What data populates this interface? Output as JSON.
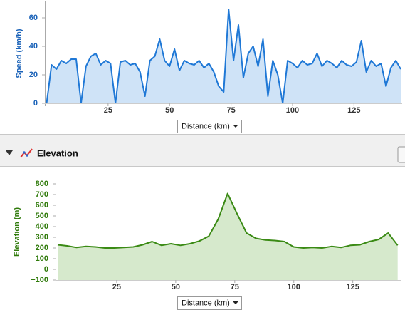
{
  "chart_data": [
    {
      "type": "area",
      "ylabel": "Speed (km/h)",
      "xlabel": "Distance (km)",
      "color": "#1f78d6",
      "fill": "#cfe3f7",
      "tick_color": "#1a62b8",
      "xlim": [
        0,
        144
      ],
      "xticks": [
        25,
        50,
        75,
        100,
        125
      ],
      "ylim": [
        0,
        70
      ],
      "yticks": [
        0,
        20,
        40,
        60
      ],
      "x": [
        0,
        2,
        4,
        6,
        8,
        10,
        12,
        14,
        16,
        18,
        20,
        22,
        24,
        26,
        28,
        30,
        32,
        34,
        36,
        38,
        40,
        42,
        44,
        46,
        48,
        50,
        52,
        54,
        56,
        58,
        60,
        62,
        64,
        66,
        68,
        70,
        72,
        74,
        76,
        78,
        80,
        82,
        84,
        86,
        88,
        90,
        92,
        94,
        96,
        98,
        100,
        102,
        104,
        106,
        108,
        110,
        112,
        114,
        116,
        118,
        120,
        122,
        124,
        126,
        128,
        130,
        132,
        134,
        136,
        138,
        140,
        142,
        144
      ],
      "values": [
        0,
        27,
        24,
        30,
        28,
        31,
        31,
        0,
        26,
        33,
        35,
        27,
        30,
        28,
        0,
        29,
        30,
        27,
        28,
        22,
        5,
        30,
        33,
        45,
        30,
        26,
        38,
        23,
        30,
        28,
        27,
        30,
        25,
        28,
        22,
        12,
        8,
        66,
        30,
        55,
        18,
        35,
        40,
        26,
        45,
        5,
        30,
        20,
        0,
        30,
        28,
        25,
        30,
        27,
        28,
        35,
        26,
        30,
        28,
        25,
        30,
        27,
        26,
        29,
        44,
        22,
        30,
        26,
        28,
        12,
        25,
        30,
        24
      ]
    },
    {
      "type": "area",
      "ylabel": "Elevation (m)",
      "xlabel": "Distance (km)",
      "color": "#3a8a14",
      "fill": "#d6e9cc",
      "tick_color": "#2f7a0a",
      "xlim": [
        0,
        145
      ],
      "xticks": [
        25,
        50,
        75,
        100,
        125
      ],
      "ylim": [
        -100,
        800
      ],
      "yticks": [
        {
          "value": -100,
          "label": "−100"
        },
        0,
        100,
        200,
        300,
        400,
        500,
        600,
        700,
        800
      ],
      "x": [
        0,
        4,
        8,
        12,
        16,
        20,
        24,
        28,
        32,
        36,
        40,
        44,
        48,
        52,
        56,
        60,
        64,
        68,
        72,
        76,
        80,
        84,
        88,
        92,
        96,
        100,
        104,
        108,
        112,
        116,
        120,
        124,
        128,
        132,
        136,
        140,
        144
      ],
      "values": [
        230,
        220,
        205,
        215,
        210,
        200,
        200,
        205,
        210,
        230,
        260,
        225,
        240,
        225,
        240,
        265,
        310,
        470,
        710,
        520,
        340,
        290,
        275,
        270,
        260,
        210,
        200,
        205,
        200,
        215,
        205,
        225,
        230,
        260,
        280,
        340,
        225
      ]
    }
  ],
  "header": {
    "title": "Elevation"
  }
}
